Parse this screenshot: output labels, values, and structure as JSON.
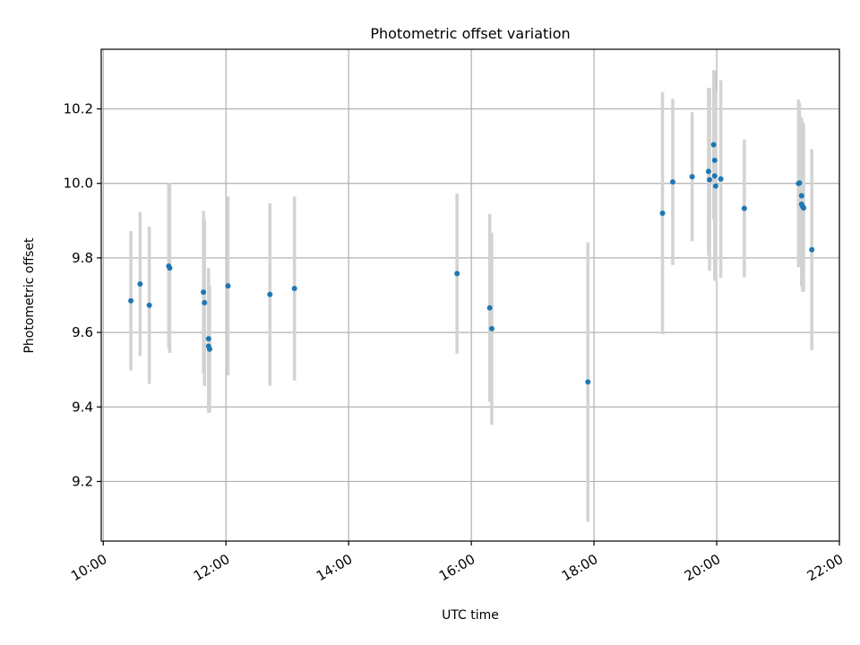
{
  "chart_data": {
    "type": "scatter",
    "title": "Photometric offset variation",
    "xlabel": "UTC time",
    "ylabel": "Photometric offset",
    "xlim": [
      "09:58",
      "22:00"
    ],
    "ylim": [
      9.04,
      10.36
    ],
    "x_ticks": [
      "10:00",
      "12:00",
      "14:00",
      "16:00",
      "18:00",
      "20:00",
      "22:00"
    ],
    "y_ticks": [
      "9.2",
      "9.4",
      "9.6",
      "9.8",
      "10.0",
      "10.2"
    ],
    "grid": true,
    "error_bar_color": "#d3d3d3",
    "point_color": "#1f77b4",
    "points": [
      {
        "time": "10:27",
        "y": 9.685,
        "yerr": 0.187
      },
      {
        "time": "10:36",
        "y": 9.73,
        "yerr": 0.193
      },
      {
        "time": "10:45",
        "y": 9.673,
        "yerr": 0.211
      },
      {
        "time": "11:04",
        "y": 9.778,
        "yerr": 0.22
      },
      {
        "time": "11:05",
        "y": 9.773,
        "yerr": 0.228
      },
      {
        "time": "11:38",
        "y": 9.708,
        "yerr": 0.218
      },
      {
        "time": "11:39",
        "y": 9.68,
        "yerr": 0.224
      },
      {
        "time": "11:43",
        "y": 9.583,
        "yerr": 0.19
      },
      {
        "time": "11:43",
        "y": 9.563,
        "yerr": 0.179
      },
      {
        "time": "11:44",
        "y": 9.555,
        "yerr": 0.17
      },
      {
        "time": "12:02",
        "y": 9.725,
        "yerr": 0.24
      },
      {
        "time": "12:43",
        "y": 9.702,
        "yerr": 0.245
      },
      {
        "time": "13:07",
        "y": 9.718,
        "yerr": 0.247
      },
      {
        "time": "15:46",
        "y": 9.758,
        "yerr": 0.215
      },
      {
        "time": "16:18",
        "y": 9.666,
        "yerr": 0.252
      },
      {
        "time": "16:20",
        "y": 9.61,
        "yerr": 0.258
      },
      {
        "time": "17:54",
        "y": 9.467,
        "yerr": 0.375
      },
      {
        "time": "19:07",
        "y": 9.92,
        "yerr": 0.325
      },
      {
        "time": "19:17",
        "y": 10.004,
        "yerr": 0.223
      },
      {
        "time": "19:36",
        "y": 10.018,
        "yerr": 0.173
      },
      {
        "time": "19:52",
        "y": 10.032,
        "yerr": 0.225
      },
      {
        "time": "19:53",
        "y": 10.01,
        "yerr": 0.245
      },
      {
        "time": "19:57",
        "y": 10.104,
        "yerr": 0.2
      },
      {
        "time": "19:58",
        "y": 10.062,
        "yerr": 0.24
      },
      {
        "time": "19:58",
        "y": 10.02,
        "yerr": 0.28
      },
      {
        "time": "19:59",
        "y": 9.993,
        "yerr": 0.255
      },
      {
        "time": "20:04",
        "y": 10.012,
        "yerr": 0.265
      },
      {
        "time": "20:27",
        "y": 9.933,
        "yerr": 0.185
      },
      {
        "time": "21:20",
        "y": 10.0,
        "yerr": 0.225
      },
      {
        "time": "21:21",
        "y": 10.001,
        "yerr": 0.215
      },
      {
        "time": "21:23",
        "y": 9.967,
        "yerr": 0.21
      },
      {
        "time": "21:23",
        "y": 9.944,
        "yerr": 0.22
      },
      {
        "time": "21:24",
        "y": 9.938,
        "yerr": 0.228
      },
      {
        "time": "21:25",
        "y": 9.934,
        "yerr": 0.225
      },
      {
        "time": "21:33",
        "y": 9.822,
        "yerr": 0.27
      }
    ]
  }
}
